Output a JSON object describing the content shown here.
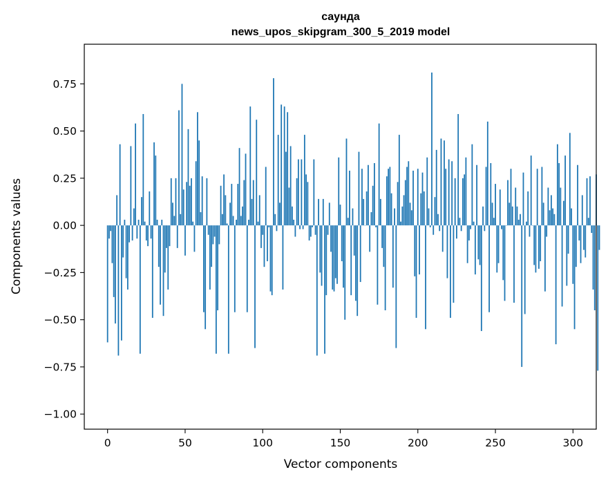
{
  "chart_data": {
    "type": "bar",
    "title": "саунда",
    "subtitle": "news_upos_skipgram_300_5_2019 model",
    "xlabel": "Vector components",
    "ylabel": "Components values",
    "xlim": [
      -15,
      315
    ],
    "ylim": [
      -1.08,
      0.96
    ],
    "xticks": [
      0,
      50,
      100,
      150,
      200,
      250,
      300
    ],
    "xtick_labels": [
      "0",
      "50",
      "100",
      "150",
      "200",
      "250",
      "300"
    ],
    "yticks": [
      -1.0,
      -0.75,
      -0.5,
      -0.25,
      0.0,
      0.25,
      0.5,
      0.75
    ],
    "ytick_labels": [
      "−1.00",
      "−0.75",
      "−0.50",
      "−0.25",
      "0.00",
      "0.25",
      "0.50",
      "0.75"
    ],
    "bar_color": "#1f77b4",
    "values": [
      -0.62,
      -0.07,
      -0.03,
      -0.2,
      -0.38,
      -0.52,
      0.16,
      -0.69,
      0.43,
      -0.61,
      -0.17,
      0.03,
      -0.28,
      -0.34,
      -0.09,
      0.42,
      -0.08,
      0.09,
      0.54,
      -0.07,
      0.03,
      -0.68,
      0.15,
      0.59,
      0.02,
      -0.08,
      -0.11,
      0.18,
      -0.07,
      -0.49,
      0.44,
      0.37,
      0.03,
      -0.22,
      -0.42,
      0.03,
      -0.48,
      -0.25,
      -0.12,
      -0.34,
      -0.11,
      0.25,
      0.12,
      0.05,
      0.25,
      -0.12,
      0.61,
      0.06,
      0.75,
      0.19,
      -0.16,
      0.23,
      0.51,
      0.21,
      0.25,
      0.02,
      -0.14,
      0.34,
      0.6,
      0.45,
      0.07,
      0.26,
      -0.46,
      -0.55,
      0.25,
      -0.05,
      -0.34,
      -0.22,
      -0.1,
      -0.06,
      -0.68,
      -0.45,
      -0.1,
      0.21,
      0.06,
      0.27,
      0.16,
      0.01,
      -0.68,
      0.12,
      0.22,
      0.05,
      -0.46,
      0.03,
      0.22,
      0.41,
      0.05,
      0.1,
      0.24,
      0.38,
      -0.46,
      0.03,
      0.63,
      0.14,
      0.24,
      -0.65,
      0.56,
      0.02,
      0.16,
      -0.12,
      -0.05,
      -0.22,
      0.31,
      -0.19,
      -0.01,
      -0.35,
      -0.37,
      0.78,
      0.06,
      -0.03,
      0.48,
      0.12,
      0.64,
      -0.34,
      0.63,
      0.39,
      0.6,
      0.2,
      0.42,
      0.1,
      0.03,
      -0.06,
      0.25,
      0.35,
      -0.02,
      0.35,
      -0.02,
      0.48,
      0.27,
      0.23,
      -0.08,
      -0.06,
      -0.01,
      0.35,
      -0.05,
      -0.69,
      0.14,
      -0.25,
      -0.32,
      0.14,
      -0.68,
      -0.37,
      -0.05,
      0.12,
      -0.14,
      -0.34,
      -0.35,
      -0.28,
      -0.31,
      0.36,
      0.11,
      -0.19,
      -0.33,
      -0.5,
      0.46,
      0.04,
      0.29,
      -0.37,
      0.09,
      -0.16,
      -0.4,
      -0.48,
      0.39,
      -0.3,
      0.3,
      0.14,
      0.0,
      0.18,
      0.32,
      -0.14,
      0.07,
      0.21,
      0.33,
      -0.01,
      -0.42,
      0.54,
      0.14,
      -0.12,
      -0.22,
      -0.45,
      0.26,
      0.3,
      0.31,
      0.17,
      -0.33,
      0.09,
      -0.65,
      0.23,
      0.48,
      0.02,
      0.1,
      0.16,
      0.24,
      0.31,
      0.34,
      0.12,
      0.08,
      0.29,
      -0.27,
      -0.49,
      0.3,
      -0.26,
      0.17,
      0.28,
      0.18,
      -0.55,
      0.36,
      0.09,
      -0.01,
      0.81,
      -0.05,
      0.15,
      0.4,
      0.06,
      -0.03,
      0.46,
      -0.14,
      0.45,
      0.3,
      -0.28,
      0.35,
      -0.49,
      0.34,
      -0.41,
      0.25,
      -0.07,
      0.59,
      0.04,
      -0.03,
      0.25,
      0.27,
      0.36,
      -0.2,
      -0.08,
      -0.02,
      0.43,
      0.02,
      -0.26,
      0.32,
      -0.18,
      -0.21,
      -0.56,
      0.1,
      -0.03,
      0.31,
      0.55,
      -0.46,
      0.33,
      0.12,
      0.04,
      0.22,
      -0.25,
      -0.2,
      0.19,
      -0.02,
      -0.29,
      -0.4,
      0.0,
      0.24,
      0.12,
      0.3,
      0.1,
      -0.41,
      0.2,
      0.1,
      0.03,
      0.06,
      -0.75,
      0.28,
      -0.47,
      0.02,
      0.18,
      -0.06,
      0.37,
      0.0,
      -0.21,
      -0.25,
      0.3,
      -0.23,
      -0.19,
      0.31,
      0.12,
      -0.35,
      -0.06,
      0.2,
      0.08,
      0.16,
      0.09,
      0.06,
      -0.63,
      0.43,
      0.33,
      0.2,
      -0.43,
      0.13,
      0.37,
      -0.32,
      -0.15,
      0.49,
      0.09,
      -0.31,
      -0.55,
      -0.22,
      0.32,
      -0.08,
      -0.2,
      0.16,
      -0.13,
      -0.17,
      0.25,
      0.04,
      0.26,
      -0.04,
      -0.34,
      -0.45,
      0.27,
      -0.77,
      -0.13
    ]
  }
}
